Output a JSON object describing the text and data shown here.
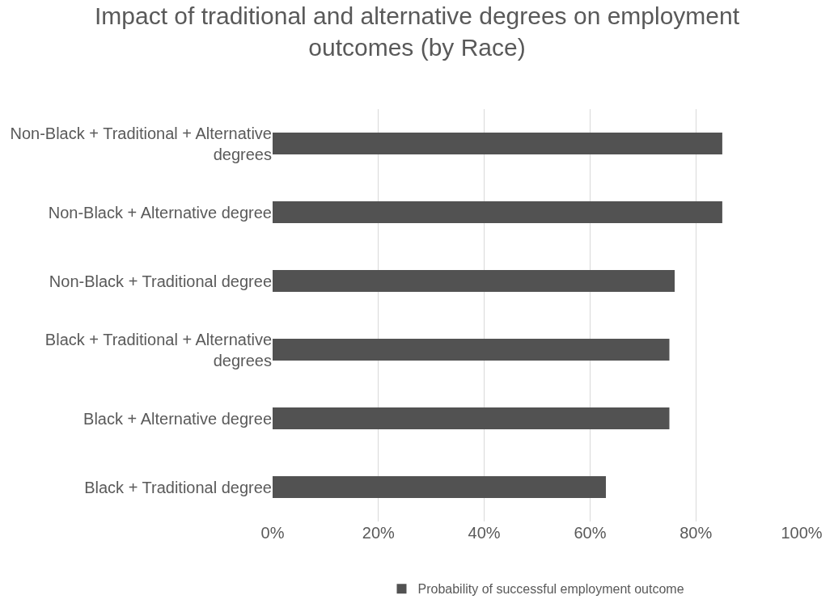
{
  "chart_data": {
    "type": "bar",
    "orientation": "horizontal",
    "title": "Impact of traditional and alternative degrees on employment outcomes (by Race)",
    "categories": [
      "Non-Black + Traditional + Alternative degrees",
      "Non-Black + Alternative degree",
      "Non-Black + Traditional degree",
      "Black + Traditional + Alternative degrees",
      "Black + Alternative degree",
      "Black + Traditional degree"
    ],
    "series": [
      {
        "name": "Probability of successful employment outcome",
        "color": "#525252",
        "values": [
          85,
          85,
          76,
          75,
          75,
          63
        ]
      }
    ],
    "xlim": [
      0,
      100
    ],
    "xticks": [
      {
        "value": 0,
        "label": "0%"
      },
      {
        "value": 20,
        "label": "20%"
      },
      {
        "value": 40,
        "label": "40%"
      },
      {
        "value": 60,
        "label": "60%"
      },
      {
        "value": 80,
        "label": "80%"
      },
      {
        "value": 100,
        "label": "100%"
      }
    ],
    "grid": "x",
    "legend": "bottom"
  }
}
